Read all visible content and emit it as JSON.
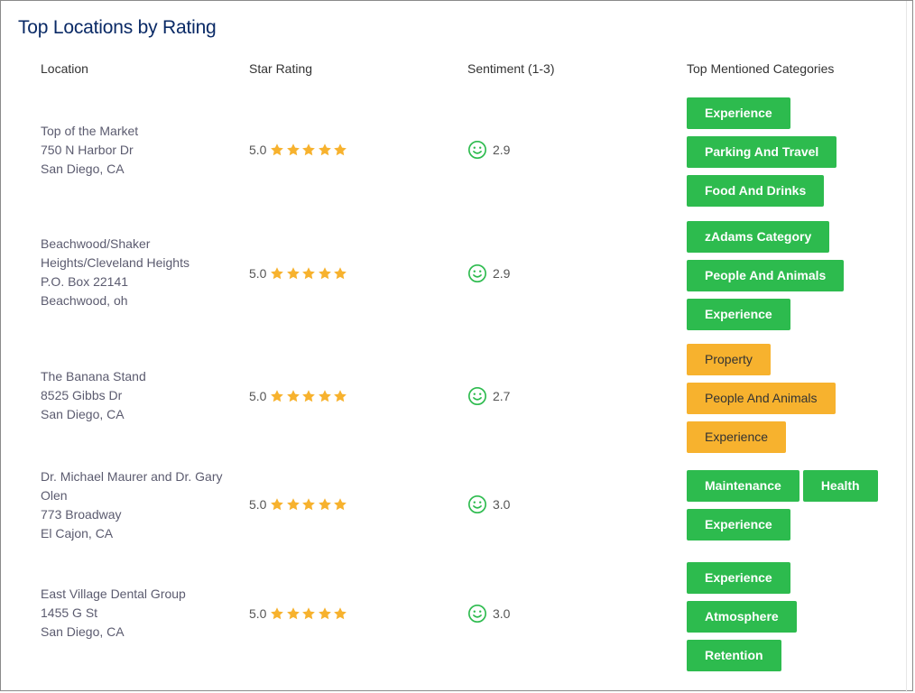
{
  "title": "Top Locations by Rating",
  "columns": {
    "location": "Location",
    "rating": "Star Rating",
    "sentiment": "Sentiment (1-3)",
    "categories": "Top Mentioned Categories"
  },
  "colors": {
    "title": "#0a2a66",
    "star": "#f7b22e",
    "smile": "#2dbb4e",
    "tag_green": "#2dbb4e",
    "tag_orange": "#f7b22e"
  },
  "rows": [
    {
      "lines": [
        "Top of the Market",
        "750 N Harbor Dr",
        "San Diego, CA"
      ],
      "rating": "5.0",
      "stars": 5,
      "sentiment": "2.9",
      "tag_color": "green",
      "tags": [
        "Experience",
        "Parking And Travel",
        "Food And Drinks"
      ]
    },
    {
      "lines": [
        "Beachwood/Shaker Heights/Cleveland Heights",
        "P.O. Box 22141",
        "Beachwood, oh"
      ],
      "rating": "5.0",
      "stars": 5,
      "sentiment": "2.9",
      "tag_color": "green",
      "tags": [
        "zAdams Category",
        "People And Animals",
        "Experience"
      ]
    },
    {
      "lines": [
        "The Banana Stand",
        "8525 Gibbs Dr",
        "San Diego, CA"
      ],
      "rating": "5.0",
      "stars": 5,
      "sentiment": "2.7",
      "tag_color": "orange",
      "tags": [
        "Property",
        "People And Animals",
        "Experience"
      ]
    },
    {
      "lines": [
        "Dr. Michael Maurer and Dr. Gary Olen",
        "773 Broadway",
        "El Cajon, CA"
      ],
      "rating": "5.0",
      "stars": 5,
      "sentiment": "3.0",
      "tag_color": "green",
      "tags": [
        "Maintenance",
        "Health",
        "Experience"
      ]
    },
    {
      "lines": [
        "East Village Dental Group",
        "1455 G St",
        "San Diego, CA"
      ],
      "rating": "5.0",
      "stars": 5,
      "sentiment": "3.0",
      "tag_color": "green",
      "tags": [
        "Experience",
        "Atmosphere",
        "Retention"
      ]
    }
  ]
}
